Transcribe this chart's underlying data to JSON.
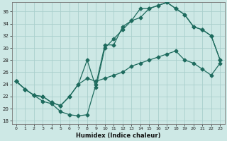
{
  "xlabel": "Humidex (Indice chaleur)",
  "background_color": "#cde8e5",
  "grid_color": "#aacfcc",
  "line_color": "#1e6b5e",
  "xlim": [
    -0.5,
    23.5
  ],
  "ylim": [
    17.5,
    37.5
  ],
  "yticks": [
    18,
    20,
    22,
    24,
    26,
    28,
    30,
    32,
    34,
    36
  ],
  "xticks": [
    0,
    1,
    2,
    3,
    4,
    5,
    6,
    7,
    8,
    9,
    10,
    11,
    12,
    13,
    14,
    15,
    16,
    17,
    18,
    19,
    20,
    21,
    22,
    23
  ],
  "line1_x": [
    0,
    1,
    2,
    3,
    4,
    5,
    6,
    7,
    8,
    9,
    10,
    11,
    12,
    13,
    14,
    15,
    16,
    17,
    18,
    19,
    20,
    21,
    22,
    23
  ],
  "line1_y": [
    24.5,
    23.2,
    22.2,
    21.2,
    20.8,
    19.5,
    19.0,
    18.8,
    19.0,
    24.0,
    30.5,
    30.5,
    33.5,
    34.5,
    35.0,
    36.5,
    37.0,
    37.5,
    36.5,
    35.5,
    33.5,
    33.0,
    32.0,
    28.0
  ],
  "line2_x": [
    0,
    1,
    2,
    3,
    4,
    5,
    6,
    7,
    8,
    9,
    10,
    11,
    12,
    13,
    14,
    15,
    16,
    17,
    18,
    19,
    20,
    21,
    22,
    23
  ],
  "line2_y": [
    24.5,
    23.2,
    22.2,
    22.0,
    21.0,
    20.5,
    22.0,
    24.0,
    28.0,
    23.5,
    30.0,
    31.5,
    33.0,
    34.5,
    36.5,
    36.5,
    37.0,
    37.5,
    36.5,
    35.5,
    33.5,
    33.0,
    32.0,
    28.0
  ],
  "line3_x": [
    0,
    1,
    2,
    3,
    4,
    5,
    6,
    7,
    8,
    9,
    10,
    11,
    12,
    13,
    14,
    15,
    16,
    17,
    18,
    19,
    20,
    21,
    22,
    23
  ],
  "line3_y": [
    24.5,
    23.2,
    22.2,
    22.0,
    21.0,
    20.5,
    22.0,
    24.0,
    25.0,
    24.5,
    25.0,
    25.5,
    26.0,
    27.0,
    27.5,
    28.0,
    28.5,
    29.0,
    29.5,
    28.0,
    27.5,
    26.5,
    25.5,
    27.5
  ],
  "figwidth": 3.2,
  "figheight": 2.0,
  "dpi": 100
}
